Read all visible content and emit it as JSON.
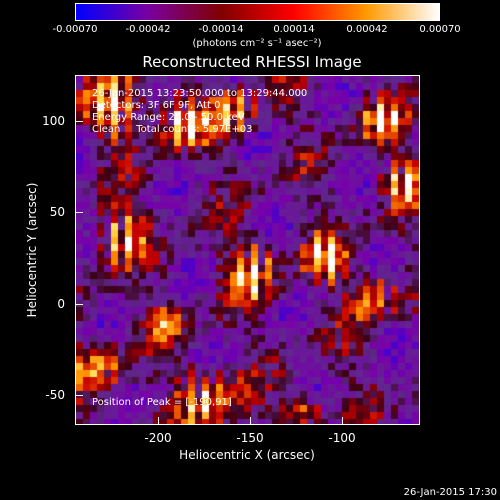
{
  "colorbar": {
    "tick_labels": [
      "-0.00070",
      "-0.00042",
      "-0.00014",
      "0.00014",
      "0.00042",
      "0.00070"
    ],
    "unit_label": "(photons cm⁻² s⁻¹ asec⁻²)",
    "colors": [
      "#0000ff",
      "#7a00a0",
      "#800000",
      "#ff0000",
      "#ff9a00",
      "#ffffff"
    ]
  },
  "title": "Reconstructed RHESSI Image",
  "info": {
    "time_range": "26-Jan-2015 13:23:50.000 to 13:29:44.000",
    "detectors": "Detectors: 3F 6F 9F, Att 0",
    "energy_range": "Energy Range: 25.0 - 50.0 keV",
    "clean": "Clean     Total counts: 5.97E+03",
    "peak": "Position of Peak = [-190,91]"
  },
  "axes": {
    "x_title": "Heliocentric X (arcsec)",
    "y_title": "Heliocentric Y (arcsec)",
    "x_ticks": [
      "-200",
      "-150",
      "-100"
    ],
    "y_ticks": [
      "100",
      "50",
      "0",
      "-50"
    ]
  },
  "datestamp": "26-Jan-2015 17:30"
}
